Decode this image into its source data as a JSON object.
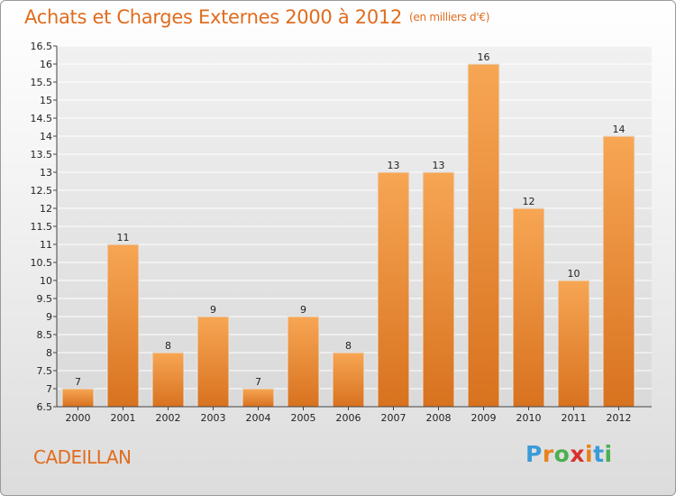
{
  "title": "Achats et Charges Externes 2000 à 2012",
  "unit": "(en milliers d'€)",
  "place": "CADEILLAN",
  "logo": {
    "text": "Proxiti",
    "letter_colors": [
      "#3b9bd8",
      "#e8821e",
      "#4caf50",
      "#d9302c",
      "#e8821e",
      "#3b9bd8",
      "#4caf50"
    ]
  },
  "colors": {
    "bar_light": "#f7a654",
    "bar_dark": "#d8721f",
    "title": "#e06c1e",
    "grid": "#ffffff"
  },
  "chart_data": {
    "type": "bar",
    "categories": [
      "2000",
      "2001",
      "2002",
      "2003",
      "2004",
      "2005",
      "2006",
      "2007",
      "2008",
      "2009",
      "2010",
      "2011",
      "2012"
    ],
    "values": [
      7,
      11,
      8,
      9,
      7,
      9,
      8,
      13,
      13,
      16,
      12,
      10,
      14
    ],
    "data_labels": [
      "7",
      "11",
      "8",
      "9",
      "7",
      "9",
      "8",
      "13",
      "13",
      "16",
      "12",
      "10",
      "14"
    ],
    "title": "Achats et Charges Externes 2000 à 2012",
    "xlabel": "",
    "ylabel": "",
    "ylim": [
      6.5,
      16.5
    ],
    "yticks": [
      "6.5",
      "7",
      "7.5",
      "8",
      "8.5",
      "9",
      "9.5",
      "10",
      "10.5",
      "11",
      "11.5",
      "12",
      "12.5",
      "13",
      "13.5",
      "14",
      "14.5",
      "15",
      "15.5",
      "16",
      "16.5"
    ],
    "grid": true
  }
}
